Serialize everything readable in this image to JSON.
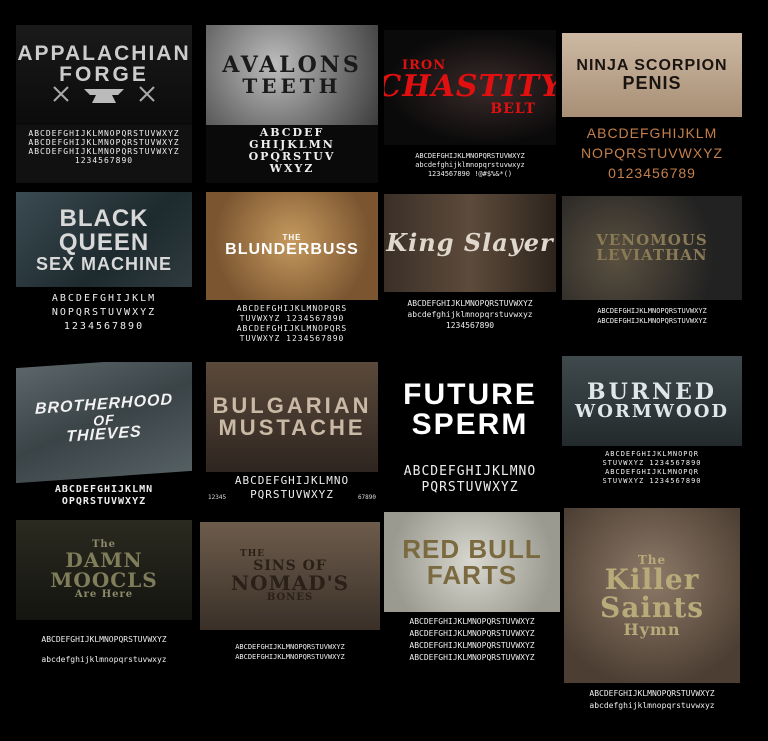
{
  "tiles": [
    {
      "title": "Appalachian",
      "title2": "Forge",
      "alphabet": "ABCDEFGHIJKLMNOPQRSTUVWXYZ\nABCDEFGHIJKLMNOPQRSTUVWXYZ\nABCDEFGHIJKLMNOPQRSTUVWXYZ\n1234567890"
    },
    {
      "title": "Avalons",
      "title2": "Teeth",
      "alphabet": "ABCDEF\nGHIJKLMN\nOPQRSTUV\nWXYZ"
    },
    {
      "title": "Iron",
      "title2": "Chastity",
      "title3": "Belt",
      "alphabet": "ABCDEFGHIJKLMNOPQRSTUVWXYZ\nabcdefghijklmnopqrstuvwxyz\n1234567890 !@#$%&*()"
    },
    {
      "title": "Ninja Scorpion",
      "title2": "Penis",
      "alphabet": "ABCDEFGHIJKLM\nNOPQRSTUVWXYZ\n0123456789"
    },
    {
      "title": "Black Queen",
      "title2": "Sex Machine",
      "alphabet": "ABCDEFGHIJKLM\nNOPQRSTUVWXYZ\n1234567890"
    },
    {
      "title_small": "The",
      "title": "Blunderbuss",
      "alphabet": "ABCDEFGHIJKLMNOPQRS\nTUVWXYZ 1234567890\nABCDEFGHIJKLMNOPQRS\nTUVWXYZ 1234567890"
    },
    {
      "title": "King Slayer",
      "alphabet": "ABCDEFGHIJKLMNOPQRSTUVWXYZ\nabcdefghijklmnopqrstuvwxyz\n1234567890"
    },
    {
      "title": "Venomous",
      "title2": "Leviathan",
      "alphabet": "ABCDEFGHIJKLMNOPQRSTUVWXYZ\nABCDEFGHIJKLMNOPQRSTUVWXYZ"
    },
    {
      "title": "Brotherhood",
      "title2": "of",
      "title3": "Thieves",
      "alphabet": "ABCDEFGHIJKLMN\nOPQRSTUVWXYZ"
    },
    {
      "title": "Bulgarian",
      "title2": "Mustache",
      "alphabet": "ABCDEFGHIJKLMNO\nPQRSTUVWXYZ",
      "digits_left": "12345",
      "digits_right": "67890"
    },
    {
      "title": "Future",
      "title2": "Sperm",
      "alphabet": "ABCDEFGHIJKLMNO\nPQRSTUVWXYZ"
    },
    {
      "title": "Burned",
      "title2": "Wormwood",
      "alphabet": "ABCDEFGHIJKLMNOPQR\nSTUVWXYZ 1234567890\nABCDEFGHIJKLMNOPQR\nSTUVWXYZ 1234567890"
    },
    {
      "title_small": "The",
      "title": "Damn Moocls",
      "title3": "Are Here",
      "alphabet": "ABCDEFGHIJKLMNOPQRSTUVWXYZ\nabcdefghijklmnopqrstuvwxyz"
    },
    {
      "title_small": "The",
      "title": "Sins of",
      "title2": "Nomad's",
      "title3": "Bones",
      "alphabet": "ABCDEFGHIJKLMNOPQRSTUVWXYZ\nABCDEFGHIJKLMNOPQRSTUVWXYZ"
    },
    {
      "title": "Red Bull",
      "title2": "Farts",
      "alphabet": "ABCDEFGHIJKLMNOPQRSTUVWXYZ\nABCDEFGHIJKLMNOPQRSTUVWXYZ\nABCDEFGHIJKLMNOPQRSTUVWXYZ\nABCDEFGHIJKLMNOPQRSTUVWXYZ"
    },
    {
      "title_small": "The",
      "title": "Killer",
      "title2": "Saints",
      "title3": "Hymn",
      "alphabet": "ABCDEFGHIJKLMNOPQRSTUVWXYZ\nabcdefghijklmnopqrstuvwxyz"
    }
  ]
}
